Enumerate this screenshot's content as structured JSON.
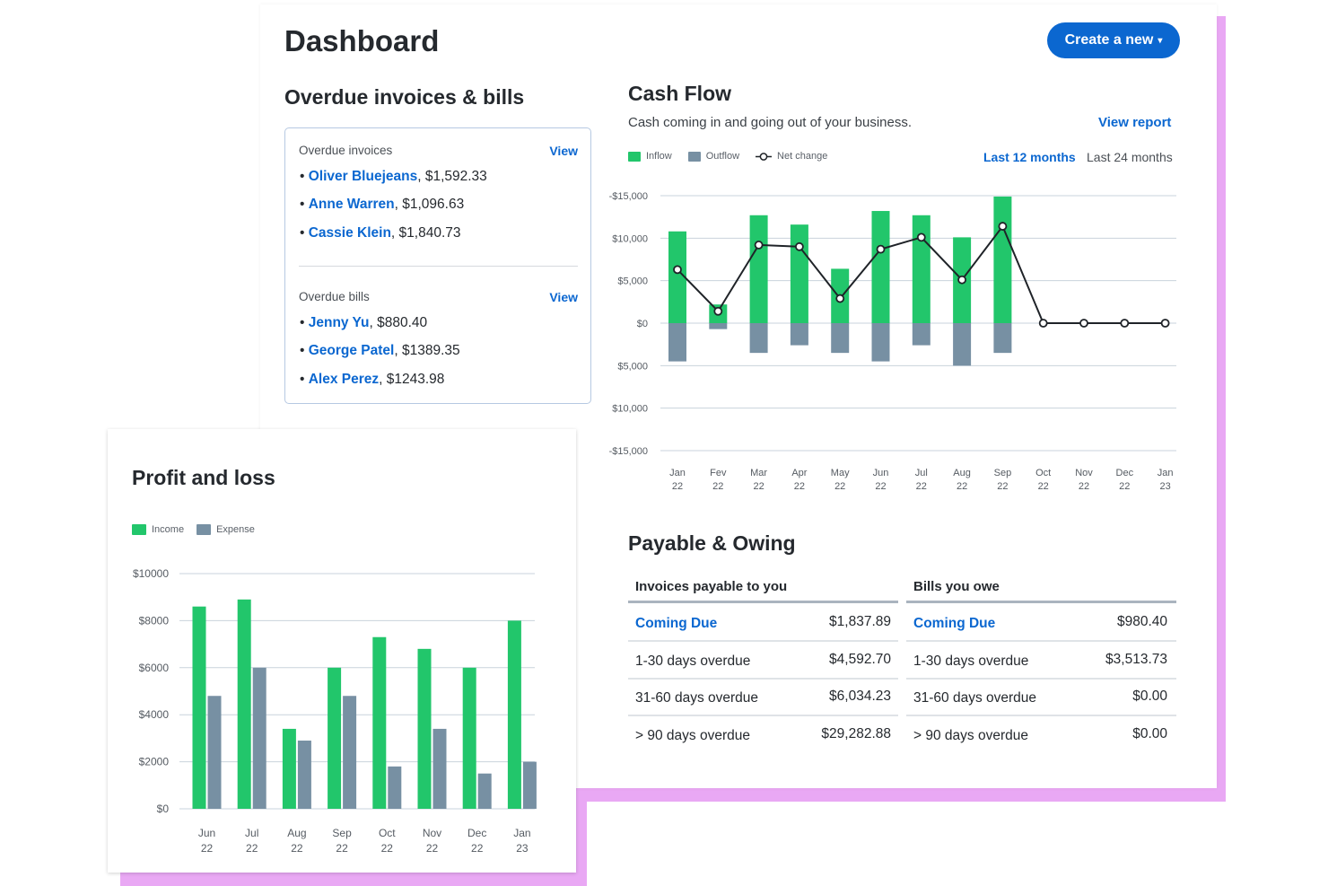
{
  "header": {
    "title": "Dashboard",
    "create_label": "Create a new",
    "create_caret": "▾"
  },
  "overdue": {
    "title": "Overdue invoices & bills",
    "invoices": {
      "label": "Overdue invoices",
      "view": "View",
      "items": [
        {
          "name": "Oliver Bluejeans",
          "amount": ", $1,592.33"
        },
        {
          "name": "Anne Warren",
          "amount": ", $1,096.63"
        },
        {
          "name": "Cassie Klein",
          "amount": ", $1,840.73"
        }
      ]
    },
    "bills": {
      "label": "Overdue bills",
      "view": "View",
      "items": [
        {
          "name": "Jenny Yu",
          "amount": ", $880.40"
        },
        {
          "name": "George Patel",
          "amount": ", $1389.35"
        },
        {
          "name": "Alex Perez",
          "amount": ", $1243.98"
        }
      ]
    }
  },
  "cashflow": {
    "title": "Cash Flow",
    "subtitle": "Cash coming in and going out of your business.",
    "view_report": "View report",
    "legend": {
      "inflow": "Inflow",
      "outflow": "Outflow",
      "net": "Net change"
    },
    "range": {
      "last12": "Last 12 months",
      "last24": "Last 24 months",
      "selected": "last12"
    }
  },
  "payable": {
    "title": "Payable & Owing",
    "invoices_header": "Invoices payable to you",
    "bills_header": "Bills you owe",
    "rows": [
      {
        "label": "Coming Due",
        "invoice_amount": "$1,837.89",
        "bill_amount": "$980.40",
        "link": true
      },
      {
        "label": "1-30 days overdue",
        "invoice_amount": "$4,592.70",
        "bill_amount": "$3,513.73",
        "link": false
      },
      {
        "label": "31-60 days overdue",
        "invoice_amount": "$6,034.23",
        "bill_amount": "$0.00",
        "link": false
      },
      {
        "label": "> 90 days overdue",
        "invoice_amount": "$29,282.88",
        "bill_amount": "$0.00",
        "link": false
      }
    ]
  },
  "profit_loss": {
    "title": "Profit and loss",
    "legend": {
      "income": "Income",
      "expense": "Expense"
    }
  },
  "colors": {
    "accent": "#0b67d0",
    "inflow": "#22c66b",
    "outflow": "#7790a3",
    "shadow": "#e9a8f4"
  },
  "chart_data": [
    {
      "type": "bar",
      "title": "Cash Flow",
      "categories": [
        [
          "Jan",
          "22"
        ],
        [
          "Fev",
          "22"
        ],
        [
          "Mar",
          "22"
        ],
        [
          "Apr",
          "22"
        ],
        [
          "May",
          "22"
        ],
        [
          "Jun",
          "22"
        ],
        [
          "Jul",
          "22"
        ],
        [
          "Aug",
          "22"
        ],
        [
          "Sep",
          "22"
        ],
        [
          "Oct",
          "22"
        ],
        [
          "Nov",
          "22"
        ],
        [
          "Dec",
          "22"
        ],
        [
          "Jan",
          "23"
        ]
      ],
      "y_ticks": [
        "-$15,000",
        "$10,000",
        "$5,000",
        "$0",
        "$5,000",
        "$10,000",
        "-$15,000"
      ],
      "ylim": [
        -15000,
        15000
      ],
      "series": [
        {
          "name": "Inflow",
          "values": [
            10800,
            2200,
            12700,
            11600,
            6400,
            13200,
            12700,
            10100,
            14900,
            0,
            0,
            0,
            0
          ]
        },
        {
          "name": "Outflow",
          "values": [
            -4500,
            -700,
            -3500,
            -2600,
            -3500,
            -4500,
            -2600,
            -5000,
            -3500,
            0,
            0,
            0,
            0
          ]
        },
        {
          "name": "Net change",
          "values": [
            6300,
            1400,
            9200,
            9000,
            2900,
            8700,
            10100,
            5100,
            11400,
            0,
            0,
            0,
            0
          ]
        }
      ],
      "grid": true,
      "legend": "top-left"
    },
    {
      "type": "bar",
      "title": "Profit and loss",
      "categories": [
        [
          "Jun",
          "22"
        ],
        [
          "Jul",
          "22"
        ],
        [
          "Aug",
          "22"
        ],
        [
          "Sep",
          "22"
        ],
        [
          "Oct",
          "22"
        ],
        [
          "Nov",
          "22"
        ],
        [
          "Dec",
          "22"
        ],
        [
          "Jan",
          "23"
        ]
      ],
      "y_ticks": [
        "$10000",
        "$8000",
        "$6000",
        "$4000",
        "$2000",
        "$0"
      ],
      "ylim": [
        0,
        10000
      ],
      "series": [
        {
          "name": "Income",
          "values": [
            8600,
            8900,
            3400,
            6000,
            7300,
            6800,
            6000,
            8000
          ]
        },
        {
          "name": "Expense",
          "values": [
            4800,
            6000,
            2900,
            4800,
            1800,
            3400,
            1500,
            2000
          ]
        }
      ],
      "grid": true,
      "legend": "top-left"
    }
  ]
}
